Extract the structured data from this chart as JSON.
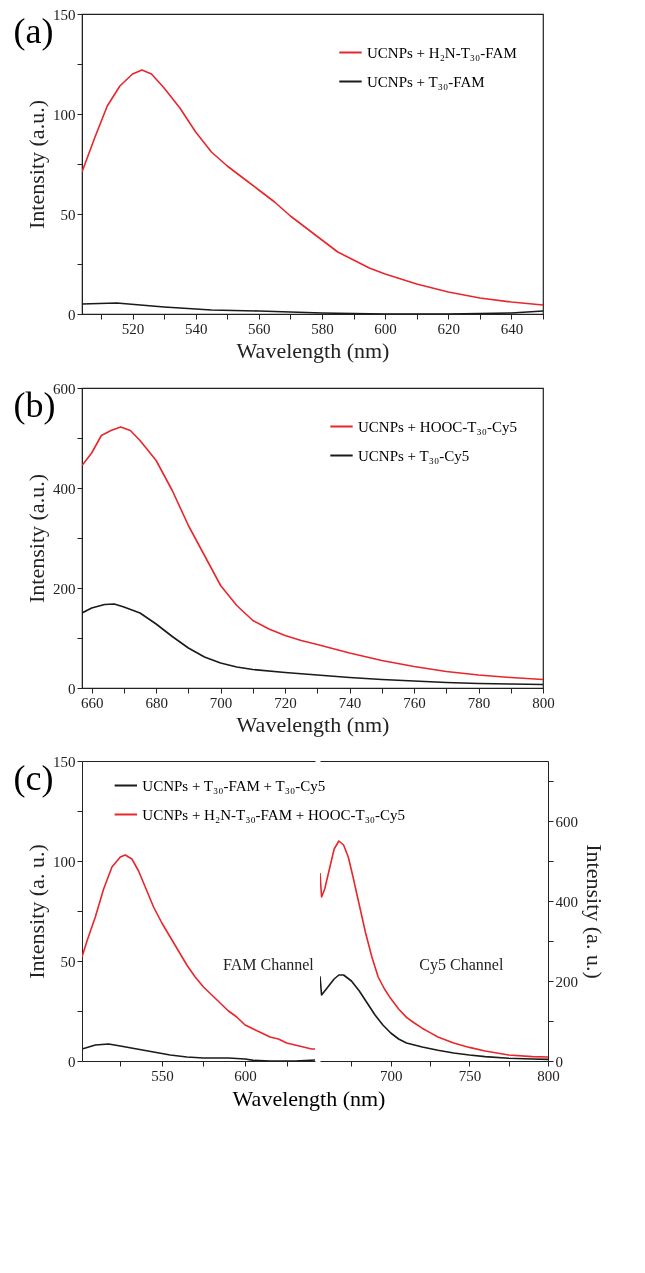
{
  "chart_data": [
    {
      "type": "line",
      "title": "(a)",
      "xlabel": "Wavelength (nm)",
      "ylabel": "Intensity (a.u.)",
      "xlim": [
        504,
        650
      ],
      "ylim": [
        0,
        150
      ],
      "xticks": [
        {
          "value": 510,
          "label": null
        },
        520,
        {
          "value": 530,
          "label": null
        },
        540,
        {
          "value": 550,
          "label": null
        },
        560,
        {
          "value": 570,
          "label": null
        },
        580,
        {
          "value": 590,
          "label": null
        },
        600,
        {
          "value": 610,
          "label": null
        },
        620,
        {
          "value": 630,
          "label": null
        },
        640,
        {
          "value": 650,
          "label": null
        }
      ],
      "yticks": [
        0,
        {
          "value": 25,
          "label": null
        },
        50,
        {
          "value": 75,
          "label": null
        },
        100,
        {
          "value": 125,
          "label": null
        },
        150
      ],
      "legend": "top right",
      "series": [
        {
          "name": "UCNPs + H₂N-T₃₀-FAM",
          "color": "#e8262b",
          "x": [
            504,
            508,
            512,
            516,
            520,
            523,
            526,
            530,
            535,
            540,
            545,
            550,
            555,
            560,
            565,
            570,
            575,
            580,
            585,
            590,
            595,
            600,
            610,
            620,
            630,
            640,
            650
          ],
          "values": [
            71,
            88,
            104,
            114,
            120,
            122,
            120,
            113,
            103,
            91,
            81,
            74,
            68,
            62,
            56,
            49,
            43,
            37,
            31,
            27,
            23,
            20,
            15,
            11,
            8,
            6,
            4.5
          ]
        },
        {
          "name": "UCNPs + T₃₀-FAM",
          "color": "#1a1a1a",
          "x": [
            504,
            515,
            530,
            545,
            560,
            580,
            600,
            620,
            640,
            650
          ],
          "values": [
            5,
            5.5,
            3.5,
            2,
            1.5,
            0.5,
            0,
            0,
            0.5,
            1.5
          ]
        }
      ]
    },
    {
      "type": "line",
      "title": "(b)",
      "xlabel": "Wavelength (nm)",
      "ylabel": "Intensity (a.u.)",
      "xlim": [
        657,
        800
      ],
      "ylim": [
        0,
        600
      ],
      "xticks": [
        660,
        {
          "value": 670,
          "label": null
        },
        680,
        {
          "value": 690,
          "label": null
        },
        700,
        {
          "value": 710,
          "label": null
        },
        720,
        {
          "value": 730,
          "label": null
        },
        740,
        {
          "value": 750,
          "label": null
        },
        760,
        {
          "value": 770,
          "label": null
        },
        780,
        {
          "value": 790,
          "label": null
        },
        800
      ],
      "yticks": [
        0,
        {
          "value": 100,
          "label": null
        },
        200,
        {
          "value": 300,
          "label": null
        },
        400,
        {
          "value": 500,
          "label": null
        },
        600
      ],
      "legend": "top right",
      "series": [
        {
          "name": "UCNPs + HOOC-T₃₀-Cy5",
          "color": "#e8262b",
          "x": [
            657,
            660,
            663,
            666,
            669,
            672,
            675,
            680,
            685,
            690,
            695,
            700,
            705,
            710,
            715,
            720,
            725,
            730,
            740,
            750,
            760,
            770,
            780,
            790,
            800
          ],
          "values": [
            445,
            470,
            505,
            515,
            522,
            515,
            495,
            455,
            395,
            325,
            265,
            205,
            165,
            135,
            118,
            105,
            95,
            87,
            70,
            55,
            43,
            33,
            26,
            21,
            17
          ]
        },
        {
          "name": "UCNPs + T₃₀-Cy5",
          "color": "#1a1a1a",
          "x": [
            657,
            660,
            664,
            667,
            670,
            675,
            680,
            685,
            690,
            695,
            700,
            705,
            710,
            720,
            730,
            740,
            750,
            760,
            770,
            780,
            790,
            800
          ],
          "values": [
            150,
            160,
            167,
            168,
            162,
            150,
            128,
            103,
            80,
            62,
            50,
            42,
            37,
            31,
            26,
            21,
            17,
            14,
            11,
            9,
            8,
            7
          ]
        }
      ]
    },
    {
      "type": "line",
      "title": "(c)",
      "xlabel": "Wavelength (nm)",
      "ylabel": "Intensity (a. u.)",
      "xlim": [
        502,
        642
      ],
      "ylim": [
        0,
        150
      ],
      "xticks": [
        {
          "value": 525,
          "label": null
        },
        550,
        {
          "value": 575,
          "label": null
        },
        600,
        {
          "value": 625,
          "label": null
        }
      ],
      "yticks": [
        0,
        {
          "value": 25,
          "label": null
        },
        50,
        {
          "value": 75,
          "label": null
        },
        100,
        {
          "value": 125,
          "label": null
        },
        150
      ],
      "legend": "top",
      "annotations": [
        "FAM Channel"
      ],
      "series": [
        {
          "name": "UCNPs + T₃₀-FAM + T₃₀-Cy5",
          "color": "#1a1a1a",
          "x": [
            502,
            510,
            518,
            525,
            535,
            545,
            555,
            565,
            575,
            590,
            600,
            605,
            615,
            630,
            642
          ],
          "values": [
            6,
            8,
            8.5,
            7.5,
            6,
            4.5,
            3,
            2,
            1.5,
            1.5,
            1,
            0.3,
            0,
            0,
            0.5
          ]
        },
        {
          "name": "UCNPs + H₂N-T₃₀-FAM + HOOC-T₃₀-Cy5",
          "color": "#e8262b",
          "x": [
            502,
            505,
            510,
            515,
            520,
            525,
            528,
            532,
            536,
            540,
            545,
            550,
            555,
            560,
            565,
            570,
            575,
            580,
            585,
            590,
            595,
            600,
            605,
            610,
            615,
            620,
            625,
            630,
            635,
            640,
            642
          ],
          "values": [
            52,
            60,
            72,
            86,
            97,
            102,
            103,
            101,
            95,
            87,
            77,
            69,
            62,
            55,
            48,
            42,
            37,
            33,
            29,
            25,
            22,
            18,
            16,
            14,
            12,
            11,
            9,
            8,
            7,
            6,
            6
          ]
        }
      ]
    },
    {
      "type": "line",
      "y2label": "Intensity (a. u.)",
      "xlim": [
        655,
        800
      ],
      "y2lim": [
        0,
        750
      ],
      "xticks": [
        {
          "value": 675,
          "label": null
        },
        700,
        {
          "value": 725,
          "label": null
        },
        750,
        {
          "value": 775,
          "label": null
        },
        800
      ],
      "y2ticks": [
        0,
        {
          "value": 100,
          "label": null
        },
        200,
        {
          "value": 300,
          "label": null
        },
        400,
        {
          "value": 500,
          "label": null
        },
        600,
        {
          "value": 700,
          "label": null
        }
      ],
      "annotations": [
        "Cy5 Channel"
      ],
      "series": [
        {
          "color": "#1a1a1a",
          "axis": "y2",
          "x": [
            655,
            656,
            660,
            664,
            667,
            670,
            675,
            680,
            685,
            690,
            695,
            700,
            705,
            710,
            720,
            730,
            740,
            750,
            760,
            775,
            790,
            800
          ],
          "values": [
            212,
            165,
            185,
            205,
            215,
            215,
            200,
            175,
            145,
            115,
            90,
            70,
            55,
            45,
            35,
            27,
            20,
            15,
            11,
            7,
            5,
            4
          ]
        },
        {
          "color": "#e8262b",
          "axis": "y2",
          "x": [
            655,
            656,
            658,
            661,
            664,
            667,
            670,
            673,
            676,
            680,
            684,
            688,
            692,
            696,
            700,
            705,
            710,
            715,
            720,
            725,
            730,
            740,
            750,
            760,
            775,
            790,
            800
          ],
          "values": [
            470,
            410,
            430,
            480,
            530,
            550,
            540,
            510,
            460,
            390,
            320,
            260,
            210,
            180,
            156,
            130,
            109,
            95,
            82,
            71,
            60,
            45,
            34,
            25,
            15,
            11,
            10
          ]
        }
      ]
    }
  ]
}
